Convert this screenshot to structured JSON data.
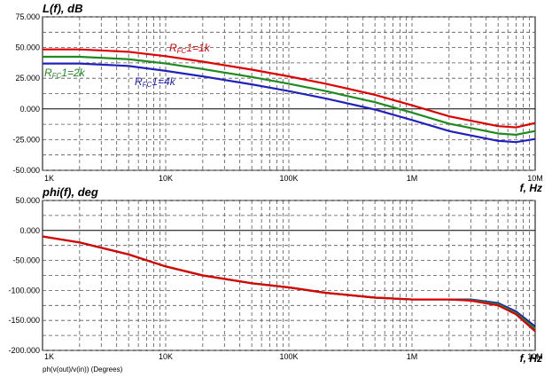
{
  "chart_data": [
    {
      "type": "line",
      "ylabel": "L(f), dB",
      "xlabel": "f, Hz",
      "x_scale": "log",
      "xlim": [
        1000,
        10000000
      ],
      "ylim": [
        -50,
        75
      ],
      "x_ticks": [
        {
          "value": 1000,
          "label": "1K"
        },
        {
          "value": 10000,
          "label": "10K"
        },
        {
          "value": 100000,
          "label": "100K"
        },
        {
          "value": 1000000,
          "label": "1M"
        },
        {
          "value": 10000000,
          "label": "10M"
        }
      ],
      "y_ticks": [
        {
          "value": 75,
          "label": "75.000"
        },
        {
          "value": 50,
          "label": "50.000"
        },
        {
          "value": 25,
          "label": "25.000"
        },
        {
          "value": 0,
          "label": "0.000"
        },
        {
          "value": -25,
          "label": "-25.000"
        },
        {
          "value": -50,
          "label": "-50.000"
        }
      ],
      "grid": true,
      "series": [
        {
          "name": "RFC1=1k",
          "label_main": "R",
          "label_sub": "FC",
          "label_tail": "1=1k",
          "color": "#dd0000",
          "x": [
            1000,
            2000,
            5000,
            10000,
            20000,
            50000,
            100000,
            200000,
            500000,
            1000000,
            2000000,
            5000000,
            7000000,
            10000000
          ],
          "y": [
            48.5,
            48.5,
            46.5,
            43,
            38.5,
            32,
            26.5,
            20.5,
            11.5,
            3,
            -6,
            -14,
            -15,
            -11.5
          ]
        },
        {
          "name": "RFC1=2k",
          "label_main": "R",
          "label_sub": "FC",
          "label_tail": "1=2k",
          "color": "#1f8a1f",
          "x": [
            1000,
            2000,
            5000,
            10000,
            20000,
            50000,
            100000,
            200000,
            500000,
            1000000,
            2000000,
            5000000,
            7000000,
            10000000
          ],
          "y": [
            42.5,
            42.5,
            40.5,
            37,
            32.5,
            26,
            20.5,
            14.5,
            5.5,
            -3,
            -12,
            -20,
            -21,
            -18
          ]
        },
        {
          "name": "RFC1=4k",
          "label_main": "R",
          "label_sub": "FC",
          "label_tail": "1=4k",
          "color": "#2222bb",
          "x": [
            1000,
            2000,
            5000,
            10000,
            20000,
            50000,
            100000,
            200000,
            500000,
            1000000,
            2000000,
            5000000,
            7000000,
            10000000
          ],
          "y": [
            37,
            37,
            35,
            31,
            26.5,
            20,
            14.5,
            8.5,
            -0.5,
            -9,
            -18,
            -26,
            -27,
            -24.5
          ]
        }
      ]
    },
    {
      "type": "line",
      "ylabel": "phi(f), deg",
      "xlabel": "f, Hz",
      "footer": "ph(v(out)/v(in)) (Degrees)",
      "x_scale": "log",
      "xlim": [
        1000,
        10000000
      ],
      "ylim": [
        -200,
        50
      ],
      "x_ticks": [
        {
          "value": 1000,
          "label": "1K"
        },
        {
          "value": 10000,
          "label": "10K"
        },
        {
          "value": 100000,
          "label": "100K"
        },
        {
          "value": 1000000,
          "label": "1M"
        },
        {
          "value": 10000000,
          "label": "10M"
        }
      ],
      "y_ticks": [
        {
          "value": 50,
          "label": "50.000"
        },
        {
          "value": 0,
          "label": "0.000"
        },
        {
          "value": -50,
          "label": "-50.000"
        },
        {
          "value": -100,
          "label": "-100.000"
        },
        {
          "value": -150,
          "label": "-150.000"
        },
        {
          "value": -200,
          "label": "-200.000"
        }
      ],
      "grid": true,
      "series": [
        {
          "name": "RFC1=1k",
          "color": "#dd0000",
          "x": [
            1000,
            2000,
            5000,
            10000,
            20000,
            50000,
            100000,
            200000,
            500000,
            1000000,
            2000000,
            3000000,
            5000000,
            7000000,
            10000000
          ],
          "y": [
            -10,
            -20,
            -40,
            -60,
            -75,
            -88,
            -95,
            -104,
            -112,
            -115,
            -115,
            -117,
            -125,
            -140,
            -168
          ]
        },
        {
          "name": "RFC1=2k",
          "color": "#1f8a1f",
          "x": [
            1000,
            2000,
            5000,
            10000,
            20000,
            50000,
            100000,
            200000,
            500000,
            1000000,
            2000000,
            3000000,
            5000000,
            7000000,
            10000000
          ],
          "y": [
            -10,
            -20,
            -40,
            -60,
            -75,
            -88,
            -95,
            -104,
            -112,
            -115,
            -115,
            -116,
            -123,
            -138,
            -164
          ]
        },
        {
          "name": "RFC1=4k",
          "color": "#2222bb",
          "x": [
            1000,
            2000,
            5000,
            10000,
            20000,
            50000,
            100000,
            200000,
            500000,
            1000000,
            2000000,
            3000000,
            5000000,
            7000000,
            10000000
          ],
          "y": [
            -10,
            -20,
            -40,
            -60,
            -75,
            -88,
            -95,
            -104,
            -112,
            -115,
            -115,
            -115,
            -121,
            -135,
            -160
          ]
        }
      ]
    }
  ]
}
